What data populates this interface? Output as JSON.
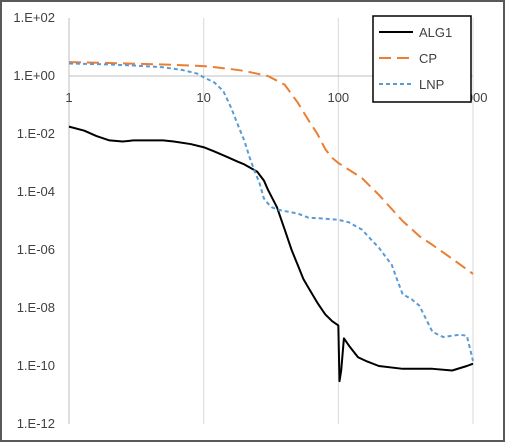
{
  "chart_data": {
    "type": "line",
    "title": "",
    "xlabel": "",
    "ylabel": "",
    "x_scale": "log",
    "y_scale": "log",
    "xlim": [
      1,
      1000
    ],
    "ylim": [
      1e-12,
      100
    ],
    "x_ticks": [
      {
        "value": 1,
        "label": "1"
      },
      {
        "value": 10,
        "label": "10"
      },
      {
        "value": 100,
        "label": "100"
      },
      {
        "value": 1000,
        "label": "1000"
      }
    ],
    "y_ticks": [
      {
        "value": 100,
        "label": "1.E+02"
      },
      {
        "value": 1,
        "label": "1.E+00"
      },
      {
        "value": 0.01,
        "label": "1.E-02"
      },
      {
        "value": 0.0001,
        "label": "1.E-04"
      },
      {
        "value": 1e-06,
        "label": "1.E-06"
      },
      {
        "value": 1e-08,
        "label": "1.E-08"
      },
      {
        "value": 1e-10,
        "label": "1.E-10"
      },
      {
        "value": 1e-12,
        "label": "1.E-12"
      }
    ],
    "x_axis_crosses_y_at": 1,
    "grid": "vertical major gridlines",
    "legend_position": "top-right",
    "series": [
      {
        "name": "ALG1",
        "color": "#000000",
        "dash": "solid",
        "x": [
          1,
          1.3,
          1.6,
          2,
          2.5,
          3,
          4,
          5,
          6,
          8,
          10,
          12,
          15,
          18,
          20,
          22,
          25,
          28,
          30,
          35,
          40,
          45,
          50,
          55,
          60,
          70,
          80,
          90,
          100,
          102,
          105,
          110,
          120,
          140,
          160,
          200,
          300,
          500,
          700,
          900,
          1000
        ],
        "y": [
          0.018,
          0.013,
          0.0085,
          0.006,
          0.0055,
          0.006,
          0.006,
          0.006,
          0.0055,
          0.0045,
          0.0035,
          0.0025,
          0.0016,
          0.0011,
          0.0009,
          0.0007,
          0.0005,
          0.00025,
          0.00012,
          3e-05,
          5e-06,
          1e-06,
          3e-07,
          1e-07,
          5e-08,
          1.5e-08,
          6e-09,
          3.5e-09,
          2.5e-09,
          3e-11,
          7e-11,
          9e-10,
          5e-10,
          2e-10,
          1.5e-10,
          1e-10,
          8e-11,
          8e-11,
          7e-11,
          1e-10,
          1.2e-10
        ]
      },
      {
        "name": "CP",
        "color": "#ED7D31",
        "dash": "long-dash",
        "x": [
          1,
          2,
          5,
          10,
          15,
          20,
          25,
          30,
          40,
          50,
          60,
          70,
          80,
          90,
          100,
          150,
          200,
          300,
          400,
          500,
          700,
          1000
        ],
        "y": [
          3,
          2.8,
          2.5,
          2.2,
          1.8,
          1.5,
          1.2,
          1.0,
          0.5,
          0.12,
          0.03,
          0.01,
          0.003,
          0.0015,
          0.001,
          0.0003,
          8e-05,
          1e-05,
          3e-06,
          1.5e-06,
          5e-07,
          1.5e-07
        ]
      },
      {
        "name": "LNP",
        "color": "#5B9BD5",
        "dash": "short-dash",
        "x": [
          1,
          2,
          3,
          5,
          7,
          9,
          10,
          12,
          14,
          16,
          18,
          20,
          22,
          24,
          26,
          28,
          30,
          32,
          35,
          40,
          50,
          60,
          80,
          100,
          120,
          150,
          180,
          200,
          250,
          270,
          300,
          350,
          400,
          500,
          600,
          800,
          900,
          1000
        ],
        "y": [
          2.7,
          2.5,
          2.3,
          2.0,
          1.6,
          1.2,
          0.9,
          0.6,
          0.3,
          0.08,
          0.02,
          0.006,
          0.0015,
          0.0005,
          0.0002,
          6e-05,
          4e-05,
          3e-05,
          2.5e-05,
          2.2e-05,
          1.8e-05,
          1.3e-05,
          1.2e-05,
          1.1e-05,
          9e-06,
          5e-06,
          2e-06,
          1.2e-06,
          3e-07,
          1.1e-07,
          3e-08,
          2e-08,
          1.2e-08,
          1.5e-09,
          1e-09,
          1.2e-09,
          1.1e-09,
          1.5e-10
        ]
      }
    ]
  }
}
